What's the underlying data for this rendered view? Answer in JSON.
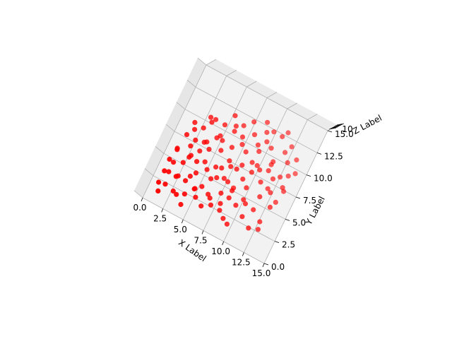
{
  "chart_data": {
    "type": "scatter",
    "projection": "3d",
    "title": "",
    "xlabel": "X Label",
    "ylabel": "Y Label",
    "zlabel": "Z Label",
    "xticks": [
      "0.0",
      "2.5",
      "5.0",
      "7.5",
      "10.0",
      "12.5",
      "15.0"
    ],
    "yticks": [
      "0.0",
      "2.5",
      "5.0",
      "7.5",
      "10.0",
      "12.5",
      "15.0"
    ],
    "zticks": [
      "10"
    ],
    "xlim": [
      0,
      15
    ],
    "ylim": [
      0,
      15
    ],
    "zlim": [
      0,
      20
    ],
    "grid": true,
    "marker_color": "#ff0000",
    "series": [
      {
        "marker": "o",
        "points": [
          [
            1.2,
            3.4,
            5
          ],
          [
            2.1,
            4.8,
            8
          ],
          [
            0.8,
            5.5,
            12
          ],
          [
            1.5,
            2.2,
            3
          ],
          [
            3.0,
            3.0,
            15
          ],
          [
            2.6,
            5.9,
            6
          ],
          [
            3.8,
            4.4,
            10
          ],
          [
            4.2,
            2.6,
            17
          ],
          [
            0.6,
            1.8,
            9
          ],
          [
            1.9,
            6.4,
            14
          ],
          [
            3.3,
            6.8,
            4
          ],
          [
            4.7,
            5.2,
            11
          ],
          [
            5.1,
            3.6,
            7
          ],
          [
            2.8,
            1.4,
            13
          ],
          [
            0.4,
            4.1,
            16
          ],
          [
            5.6,
            6.1,
            5
          ],
          [
            4.0,
            7.2,
            9
          ],
          [
            6.0,
            4.9,
            12
          ],
          [
            6.4,
            2.9,
            8
          ],
          [
            3.6,
            8.0,
            3
          ],
          [
            1.1,
            7.4,
            10
          ],
          [
            2.3,
            8.6,
            15
          ],
          [
            5.3,
            7.8,
            6
          ],
          [
            6.8,
            6.5,
            14
          ],
          [
            7.2,
            3.8,
            10
          ],
          [
            7.5,
            5.4,
            4
          ],
          [
            6.1,
            8.4,
            11
          ],
          [
            4.5,
            9.0,
            8
          ],
          [
            2.9,
            9.6,
            13
          ],
          [
            1.4,
            9.0,
            7
          ],
          [
            7.8,
            7.1,
            16
          ],
          [
            8.2,
            4.6,
            9
          ],
          [
            8.0,
            2.4,
            5
          ],
          [
            5.8,
            1.6,
            12
          ],
          [
            3.9,
            1.0,
            6
          ],
          [
            8.6,
            6.0,
            13
          ],
          [
            8.9,
            8.2,
            7
          ],
          [
            7.0,
            9.2,
            10
          ],
          [
            5.5,
            9.8,
            15
          ],
          [
            3.4,
            10.4,
            4
          ],
          [
            9.2,
            3.4,
            11
          ],
          [
            9.5,
            5.6,
            8
          ],
          [
            9.8,
            7.6,
            14
          ],
          [
            9.1,
            9.6,
            5
          ],
          [
            7.7,
            10.6,
            12
          ],
          [
            6.3,
            11.0,
            9
          ],
          [
            4.8,
            11.2,
            16
          ],
          [
            10.2,
            4.2,
            6
          ],
          [
            10.5,
            6.6,
            13
          ],
          [
            10.8,
            8.8,
            10
          ],
          [
            10.1,
            10.4,
            7
          ],
          [
            8.8,
            11.4,
            12
          ],
          [
            11.2,
            5.4,
            9
          ],
          [
            11.5,
            7.4,
            15
          ],
          [
            11.0,
            9.4,
            4
          ],
          [
            12.0,
            6.2,
            11
          ],
          [
            12.3,
            8.2,
            8
          ],
          [
            12.6,
            4.8,
            13
          ],
          [
            1.8,
            2.8,
            18
          ],
          [
            2.4,
            3.6,
            2
          ],
          [
            3.1,
            5.1,
            19
          ],
          [
            4.4,
            6.2,
            1
          ],
          [
            5.9,
            5.8,
            17
          ],
          [
            6.7,
            7.4,
            3
          ],
          [
            7.4,
            6.4,
            18
          ],
          [
            8.4,
            5.2,
            2
          ],
          [
            9.0,
            6.8,
            19
          ],
          [
            9.7,
            8.4,
            1
          ],
          [
            10.6,
            7.8,
            18
          ],
          [
            11.8,
            6.8,
            2
          ],
          [
            12.8,
            7.0,
            17
          ],
          [
            13.1,
            5.8,
            6
          ],
          [
            1.0,
            6.0,
            3
          ],
          [
            2.0,
            7.0,
            18
          ],
          [
            3.2,
            7.6,
            9
          ],
          [
            4.1,
            8.4,
            14
          ],
          [
            5.0,
            8.8,
            5
          ],
          [
            6.5,
            9.6,
            17
          ],
          [
            7.9,
            9.0,
            3
          ],
          [
            8.5,
            9.8,
            13
          ],
          [
            9.4,
            10.8,
            6
          ],
          [
            10.4,
            11.6,
            16
          ],
          [
            11.6,
            10.6,
            9
          ],
          [
            12.2,
            9.6,
            14
          ],
          [
            0.9,
            0.9,
            11
          ],
          [
            2.5,
            1.8,
            7
          ],
          [
            4.6,
            3.2,
            4
          ],
          [
            5.4,
            4.4,
            15
          ],
          [
            6.9,
            5.4,
            7
          ],
          [
            8.1,
            3.6,
            14
          ],
          [
            9.9,
            4.6,
            3
          ],
          [
            11.1,
            3.8,
            12
          ],
          [
            12.4,
            3.2,
            8
          ],
          [
            13.0,
            8.6,
            10
          ],
          [
            13.4,
            7.2,
            5
          ],
          [
            3.7,
            2.0,
            9
          ],
          [
            6.6,
            2.0,
            16
          ],
          [
            8.7,
            1.8,
            6
          ],
          [
            10.3,
            2.6,
            13
          ],
          [
            1.6,
            8.2,
            11
          ],
          [
            2.7,
            10.2,
            8
          ],
          [
            4.3,
            10.0,
            13
          ],
          [
            5.7,
            10.8,
            4
          ],
          [
            7.1,
            11.8,
            10
          ],
          [
            8.3,
            12.2,
            15
          ],
          [
            9.6,
            12.0,
            7
          ],
          [
            10.9,
            12.4,
            12
          ],
          [
            12.1,
            11.6,
            5
          ],
          [
            12.9,
            10.2,
            16
          ],
          [
            13.6,
            9.2,
            9
          ],
          [
            0.5,
            2.9,
            14
          ],
          [
            1.3,
            4.6,
            2
          ],
          [
            2.2,
            5.2,
            17
          ],
          [
            3.5,
            4.0,
            6
          ],
          [
            4.9,
            2.2,
            10
          ],
          [
            6.2,
            3.4,
            2
          ],
          [
            7.6,
            2.8,
            11
          ],
          [
            9.3,
            1.4,
            8
          ],
          [
            11.4,
            1.8,
            15
          ],
          [
            12.7,
            2.6,
            4
          ]
        ]
      }
    ]
  }
}
